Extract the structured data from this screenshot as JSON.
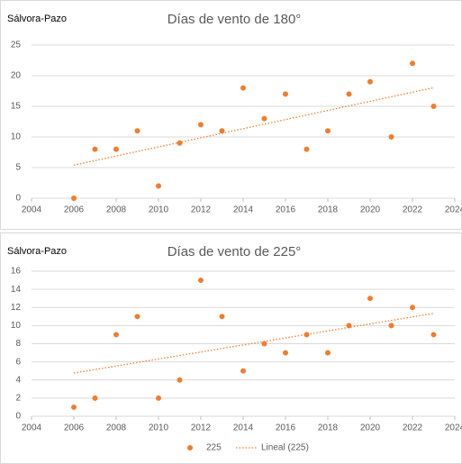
{
  "chart_data": [
    {
      "type": "scatter",
      "corner_label": "Sálvora-Pazo",
      "title": "Días de vento de 180°",
      "x": [
        2006,
        2007,
        2008,
        2009,
        2010,
        2011,
        2012,
        2013,
        2014,
        2015,
        2016,
        2017,
        2018,
        2019,
        2020,
        2021,
        2022,
        2023
      ],
      "series": [
        {
          "name": "225",
          "color": "#ed7d31",
          "values": [
            0,
            8,
            8,
            11,
            2,
            9,
            12,
            11,
            18,
            13,
            17,
            8,
            11,
            17,
            19,
            10,
            22,
            15
          ]
        }
      ],
      "trendline": true,
      "xlim": [
        2004,
        2024
      ],
      "xticks": [
        2004,
        2006,
        2008,
        2010,
        2012,
        2014,
        2016,
        2018,
        2020,
        2022,
        2024
      ],
      "ylim": [
        0,
        25
      ],
      "yticks": [
        0,
        5,
        10,
        15,
        20,
        25
      ],
      "grid": true,
      "legend": false
    },
    {
      "type": "scatter",
      "corner_label": "Sálvora-Pazo",
      "title": "Días de vento de 225°",
      "x": [
        2006,
        2007,
        2008,
        2009,
        2010,
        2011,
        2012,
        2013,
        2014,
        2015,
        2016,
        2017,
        2018,
        2019,
        2020,
        2021,
        2022,
        2023
      ],
      "series": [
        {
          "name": "225",
          "color": "#ed7d31",
          "values": [
            1,
            2,
            9,
            11,
            2,
            4,
            15,
            11,
            5,
            8,
            7,
            9,
            7,
            10,
            13,
            10,
            12,
            9
          ]
        }
      ],
      "trendline": true,
      "trendline_label": "Lineal (225)",
      "xlim": [
        2004,
        2024
      ],
      "xticks": [
        2004,
        2006,
        2008,
        2010,
        2012,
        2014,
        2016,
        2018,
        2020,
        2022,
        2024
      ],
      "ylim": [
        0,
        16
      ],
      "yticks": [
        0,
        2,
        4,
        6,
        8,
        10,
        12,
        14,
        16
      ],
      "grid": true,
      "legend": "bottom"
    }
  ]
}
